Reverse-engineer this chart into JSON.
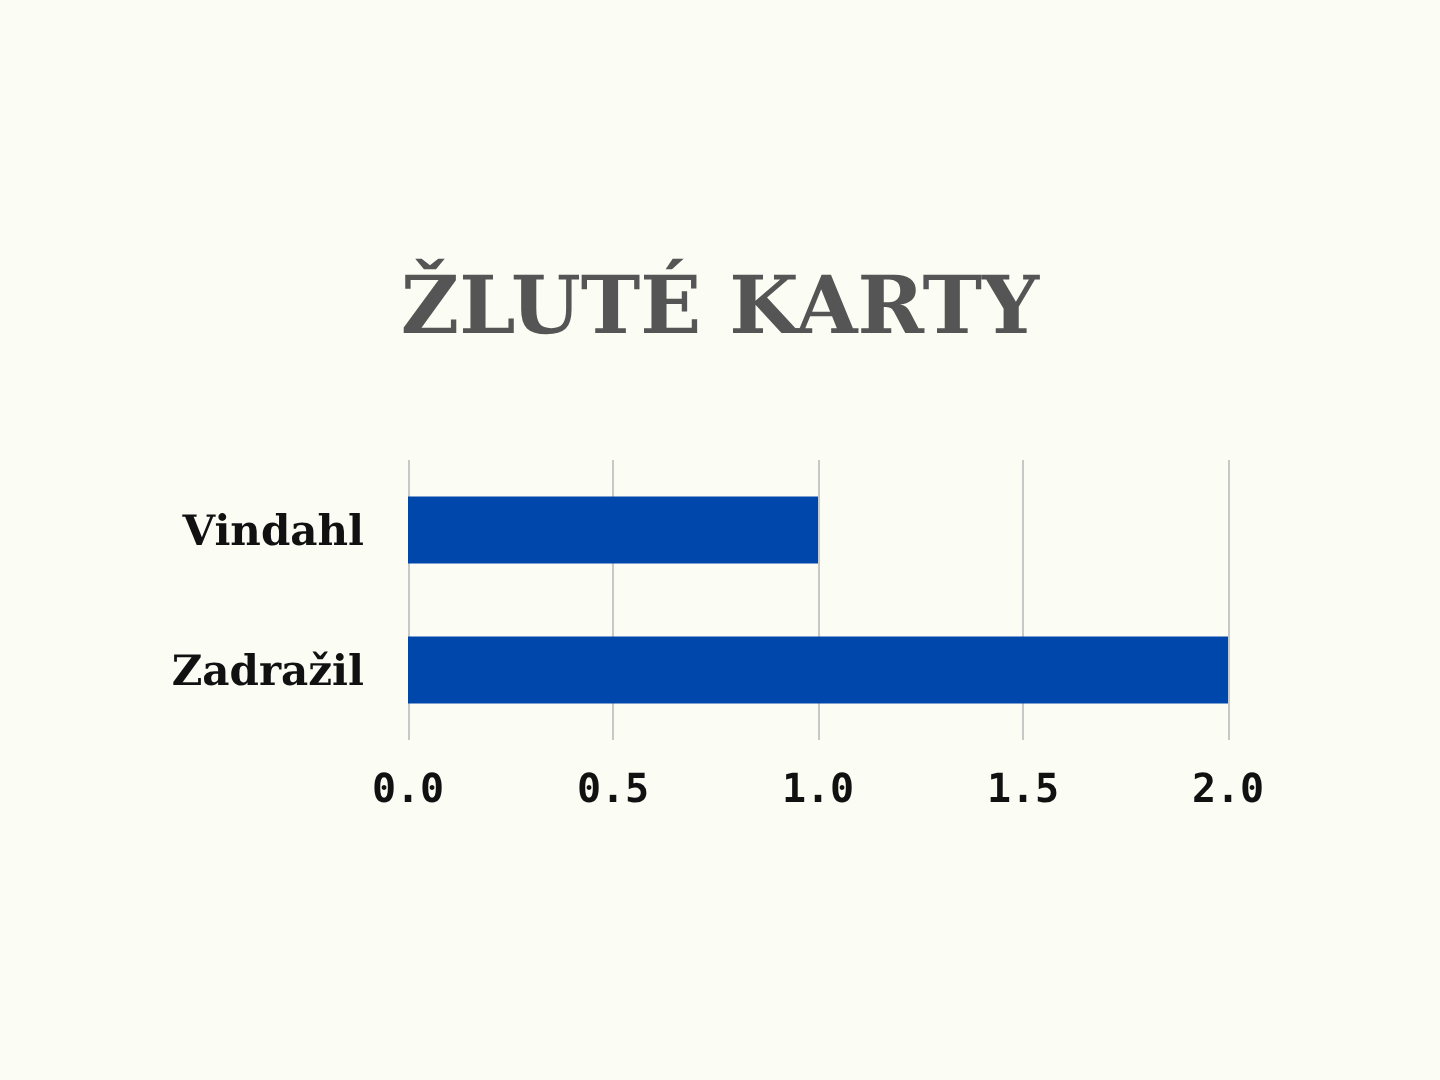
{
  "chart_data": {
    "type": "bar",
    "orientation": "horizontal",
    "title": "ŽLUTÉ KARTY",
    "categories": [
      "Vindahl",
      "Zadražil"
    ],
    "values": [
      1,
      2
    ],
    "color": "#0047ab",
    "xlim": [
      0,
      2
    ],
    "xticks": [
      {
        "value": 0,
        "label": "0.0"
      },
      0.5,
      {
        "value": 1,
        "label": "1.0"
      },
      1.5,
      {
        "value": 2,
        "label": "2.0"
      }
    ],
    "grid": "x"
  }
}
